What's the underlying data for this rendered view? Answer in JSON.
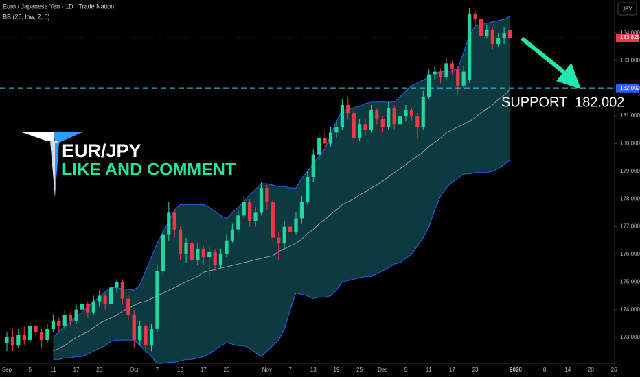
{
  "chart_data": {
    "type": "candlestick",
    "title": "Euro / Japanese Yen · 1D · Trade Nation",
    "indicator": "BB (25, low, 2, 0)",
    "currency": "JPY",
    "watermark_title": "EUR/JPY",
    "watermark_subtitle": "LIKE AND COMMENT",
    "support_label": "SUPPORT  182.002",
    "support_level": 182.002,
    "up_color": "#22d6a0",
    "down_color": "#f23645",
    "band_line_color": "#2962ff",
    "band_fill_color": "#0c3a40",
    "middle_color": "#b2b5be",
    "support_color": "#33d4e6",
    "categories": [
      "Sep",
      null,
      null,
      null,
      "5",
      null,
      null,
      null,
      "11",
      null,
      null,
      null,
      "17",
      null,
      null,
      null,
      "23",
      null,
      null,
      null,
      null,
      null,
      "Oct",
      null,
      null,
      null,
      "7",
      null,
      null,
      null,
      "13",
      null,
      null,
      null,
      "17",
      null,
      null,
      null,
      "23",
      null,
      null,
      null,
      null,
      null,
      null,
      "Nov",
      null,
      null,
      null,
      "7",
      null,
      null,
      null,
      "13",
      null,
      null,
      null,
      "19",
      null,
      null,
      null,
      "25",
      null,
      null,
      null,
      "Dec",
      null,
      null,
      null,
      "5",
      null,
      null,
      null,
      "11",
      null,
      null,
      null,
      "17",
      null,
      null,
      null,
      "23",
      null,
      null,
      null,
      null,
      null,
      null,
      "2026",
      null,
      null,
      null,
      null,
      "8",
      null,
      null,
      null,
      "14",
      null,
      null,
      null,
      "20",
      null,
      null,
      null,
      "26"
    ],
    "open": [
      172.8,
      173.0,
      172.7,
      173.1,
      172.9,
      173.4,
      173.2,
      172.9,
      173.3,
      173.6,
      173.4,
      173.8,
      173.6,
      174.0,
      174.2,
      173.9,
      174.3,
      174.5,
      174.2,
      174.8,
      175.0,
      174.4,
      173.8,
      172.9,
      173.4,
      172.7,
      173.3,
      175.4,
      176.7,
      177.5,
      176.9,
      176.0,
      176.4,
      175.8,
      176.2,
      175.9,
      176.1,
      175.6,
      176.0,
      176.5,
      176.9,
      177.4,
      177.9,
      177.2,
      177.5,
      178.4,
      177.9,
      176.6,
      176.4,
      177.0,
      176.8,
      177.3,
      177.9,
      178.8,
      179.6,
      180.2,
      180.0,
      180.4,
      180.6,
      181.4,
      181.1,
      180.2,
      180.7,
      180.5,
      181.2,
      180.9,
      180.6,
      181.3,
      180.7,
      181.0,
      181.2,
      181.0,
      180.6,
      181.7,
      182.5,
      182.6,
      182.4,
      182.9,
      182.7,
      182.1,
      182.3,
      184.7,
      184.5,
      183.9,
      184.1,
      183.6,
      183.8,
      184.1,
      null,
      null,
      null,
      null,
      null,
      null,
      null,
      null,
      null,
      null,
      null,
      null,
      null,
      null,
      null,
      null,
      null,
      null
    ],
    "high": [
      173.2,
      173.3,
      173.3,
      173.4,
      173.6,
      173.5,
      173.3,
      173.5,
      173.8,
      173.7,
      174.0,
      173.9,
      174.2,
      174.4,
      174.3,
      174.5,
      174.7,
      174.6,
      175.0,
      175.1,
      175.1,
      174.5,
      174.0,
      173.6,
      173.5,
      173.5,
      175.6,
      176.9,
      177.9,
      177.6,
      177.0,
      176.6,
      176.5,
      176.4,
      176.3,
      176.3,
      176.2,
      176.2,
      176.7,
      177.1,
      177.6,
      178.1,
      178.0,
      177.7,
      178.6,
      178.5,
      178.0,
      176.8,
      177.2,
      177.1,
      177.5,
      178.1,
      179.0,
      179.8,
      180.4,
      180.5,
      180.6,
      180.8,
      181.6,
      181.7,
      181.3,
      180.9,
      180.9,
      181.4,
      181.3,
      181.0,
      181.5,
      181.4,
      181.2,
      181.4,
      181.3,
      181.1,
      181.9,
      182.7,
      182.8,
      182.7,
      183.1,
      183.0,
      182.8,
      182.8,
      184.9,
      184.8,
      184.6,
      184.3,
      184.2,
      184.0,
      184.2,
      184.3,
      null,
      null,
      null,
      null,
      null,
      null,
      null,
      null,
      null,
      null,
      null,
      null,
      null,
      null,
      null,
      null,
      null,
      null
    ],
    "low": [
      172.5,
      172.5,
      172.6,
      172.7,
      172.8,
      173.0,
      172.6,
      172.8,
      173.2,
      173.2,
      173.3,
      173.4,
      173.5,
      173.9,
      173.7,
      173.8,
      174.1,
      174.0,
      174.1,
      174.6,
      174.2,
      173.6,
      172.6,
      172.7,
      172.4,
      172.5,
      173.2,
      175.2,
      176.5,
      176.6,
      175.8,
      175.7,
      175.4,
      175.6,
      175.6,
      175.2,
      175.4,
      175.5,
      175.9,
      176.4,
      176.8,
      177.3,
      177.0,
      177.0,
      177.4,
      177.6,
      176.4,
      175.8,
      176.2,
      176.5,
      176.7,
      177.1,
      177.8,
      178.6,
      179.4,
      179.8,
      179.9,
      180.2,
      180.5,
      180.9,
      180.0,
      180.1,
      180.3,
      180.4,
      180.7,
      180.4,
      180.5,
      180.5,
      180.6,
      180.8,
      180.8,
      180.2,
      180.5,
      181.6,
      182.3,
      182.2,
      182.3,
      182.5,
      181.8,
      182.0,
      182.2,
      184.3,
      183.7,
      183.8,
      183.4,
      183.5,
      183.6,
      183.7,
      null,
      null,
      null,
      null,
      null,
      null,
      null,
      null,
      null,
      null,
      null,
      null,
      null,
      null,
      null,
      null,
      null,
      null
    ],
    "close": [
      173.0,
      172.7,
      173.1,
      172.9,
      173.4,
      173.2,
      172.9,
      173.3,
      173.6,
      173.4,
      173.8,
      173.6,
      174.0,
      174.2,
      173.9,
      174.3,
      174.5,
      174.2,
      174.8,
      175.0,
      174.4,
      173.8,
      172.9,
      173.4,
      172.7,
      173.3,
      175.4,
      176.7,
      177.5,
      176.9,
      176.0,
      176.4,
      175.8,
      176.2,
      175.9,
      176.1,
      175.6,
      176.0,
      176.5,
      176.9,
      177.4,
      177.9,
      177.2,
      177.5,
      178.4,
      177.9,
      176.6,
      176.4,
      177.0,
      176.8,
      177.3,
      177.9,
      178.8,
      179.6,
      180.2,
      180.0,
      180.4,
      180.6,
      181.4,
      181.1,
      180.2,
      180.7,
      180.5,
      181.2,
      180.9,
      180.6,
      181.3,
      180.7,
      181.0,
      181.2,
      181.0,
      180.6,
      181.7,
      182.5,
      182.6,
      182.4,
      182.9,
      182.7,
      182.1,
      182.6,
      184.7,
      184.5,
      183.9,
      184.1,
      183.6,
      183.8,
      184.0,
      183.825,
      null,
      null,
      null,
      null,
      null,
      null,
      null,
      null,
      null,
      null,
      null,
      null,
      null,
      null,
      null,
      null,
      null,
      null
    ],
    "bb_upper": [
      null,
      null,
      null,
      null,
      null,
      null,
      null,
      null,
      173.0,
      173.2,
      173.4,
      173.55,
      173.75,
      173.9,
      174.1,
      174.3,
      174.45,
      174.65,
      174.8,
      174.8,
      174.75,
      174.75,
      174.7,
      174.9,
      175.4,
      175.9,
      176.4,
      176.8,
      177.2,
      177.6,
      177.8,
      177.8,
      177.8,
      177.8,
      177.8,
      177.7,
      177.55,
      177.4,
      177.3,
      177.5,
      177.7,
      177.9,
      178.15,
      178.35,
      178.55,
      178.55,
      178.5,
      178.45,
      178.45,
      178.4,
      178.4,
      178.75,
      179.0,
      179.3,
      179.55,
      179.8,
      180.3,
      180.8,
      181.2,
      181.25,
      181.3,
      181.35,
      181.45,
      181.5,
      181.5,
      181.5,
      181.5,
      181.5,
      181.7,
      181.9,
      182.1,
      182.2,
      182.3,
      182.4,
      182.55,
      182.6,
      182.6,
      182.65,
      182.7,
      183.3,
      183.9,
      184.25,
      184.3,
      184.35,
      184.4,
      184.45,
      184.5,
      184.6,
      null,
      null,
      null,
      null,
      null,
      null,
      null,
      null,
      null,
      null,
      null,
      null,
      null,
      null,
      null,
      null,
      null,
      null
    ],
    "bb_middle": [
      null,
      null,
      null,
      null,
      null,
      null,
      null,
      null,
      172.5,
      172.6,
      172.7,
      172.85,
      173.0,
      173.1,
      173.2,
      173.35,
      173.5,
      173.6,
      173.7,
      173.8,
      173.95,
      174.05,
      174.15,
      174.25,
      174.3,
      174.4,
      174.5,
      174.6,
      174.7,
      174.8,
      174.9,
      175.0,
      175.1,
      175.2,
      175.35,
      175.4,
      175.45,
      175.5,
      175.55,
      175.6,
      175.65,
      175.7,
      175.75,
      175.8,
      175.85,
      175.9,
      175.95,
      176.1,
      176.2,
      176.3,
      176.4,
      176.55,
      176.75,
      176.9,
      177.1,
      177.25,
      177.45,
      177.6,
      177.8,
      177.9,
      178.0,
      178.15,
      178.25,
      178.4,
      178.5,
      178.65,
      178.8,
      178.95,
      179.1,
      179.25,
      179.4,
      179.55,
      179.7,
      179.9,
      180.05,
      180.2,
      180.4,
      180.5,
      180.6,
      180.7,
      180.8,
      180.95,
      181.1,
      181.25,
      181.4,
      181.6,
      181.75,
      181.95,
      null,
      null,
      null,
      null,
      null,
      null,
      null,
      null,
      null,
      null,
      null,
      null,
      null,
      null,
      null,
      null,
      null,
      null
    ],
    "bb_lower": [
      null,
      null,
      null,
      null,
      null,
      null,
      null,
      null,
      172.2,
      172.2,
      172.25,
      172.25,
      172.3,
      172.3,
      172.4,
      172.5,
      172.6,
      172.7,
      172.85,
      172.9,
      172.9,
      172.9,
      172.9,
      172.7,
      172.5,
      172.3,
      172.05,
      172.05,
      172.1,
      172.1,
      172.15,
      172.2,
      172.2,
      172.25,
      172.3,
      172.4,
      172.55,
      172.7,
      172.8,
      172.75,
      172.7,
      172.7,
      172.6,
      172.45,
      172.3,
      172.5,
      172.7,
      172.9,
      173.3,
      174.0,
      174.6,
      174.55,
      174.5,
      174.4,
      174.45,
      174.45,
      174.5,
      174.7,
      175.0,
      175.05,
      175.1,
      175.15,
      175.2,
      175.2,
      175.3,
      175.4,
      175.5,
      175.65,
      175.7,
      175.85,
      176.0,
      176.3,
      176.6,
      177.0,
      177.6,
      178.1,
      178.4,
      178.6,
      178.75,
      178.9,
      178.9,
      178.95,
      178.95,
      178.95,
      179.0,
      179.1,
      179.25,
      179.4,
      null,
      null,
      null,
      null,
      null,
      null,
      null,
      null,
      null,
      null,
      null,
      null,
      null,
      null,
      null,
      null,
      null,
      null
    ],
    "ylim": [
      172.06,
      185.19
    ],
    "yticks": [
      {
        "value": 173,
        "label": "173.000"
      },
      {
        "value": 174,
        "label": "174.000"
      },
      {
        "value": 175,
        "label": "175.000"
      },
      {
        "value": 176,
        "label": "176.000"
      },
      {
        "value": 177,
        "label": "177.000"
      },
      {
        "value": 178,
        "label": "178.000"
      },
      {
        "value": 179,
        "label": "179.000"
      },
      {
        "value": 180,
        "label": "180.000"
      },
      {
        "value": 181,
        "label": "181.000"
      },
      {
        "value": 182,
        "label": "182.000"
      },
      {
        "value": 183,
        "label": "183.000"
      },
      {
        "value": 184,
        "label": "184.000"
      }
    ],
    "grid": false
  }
}
